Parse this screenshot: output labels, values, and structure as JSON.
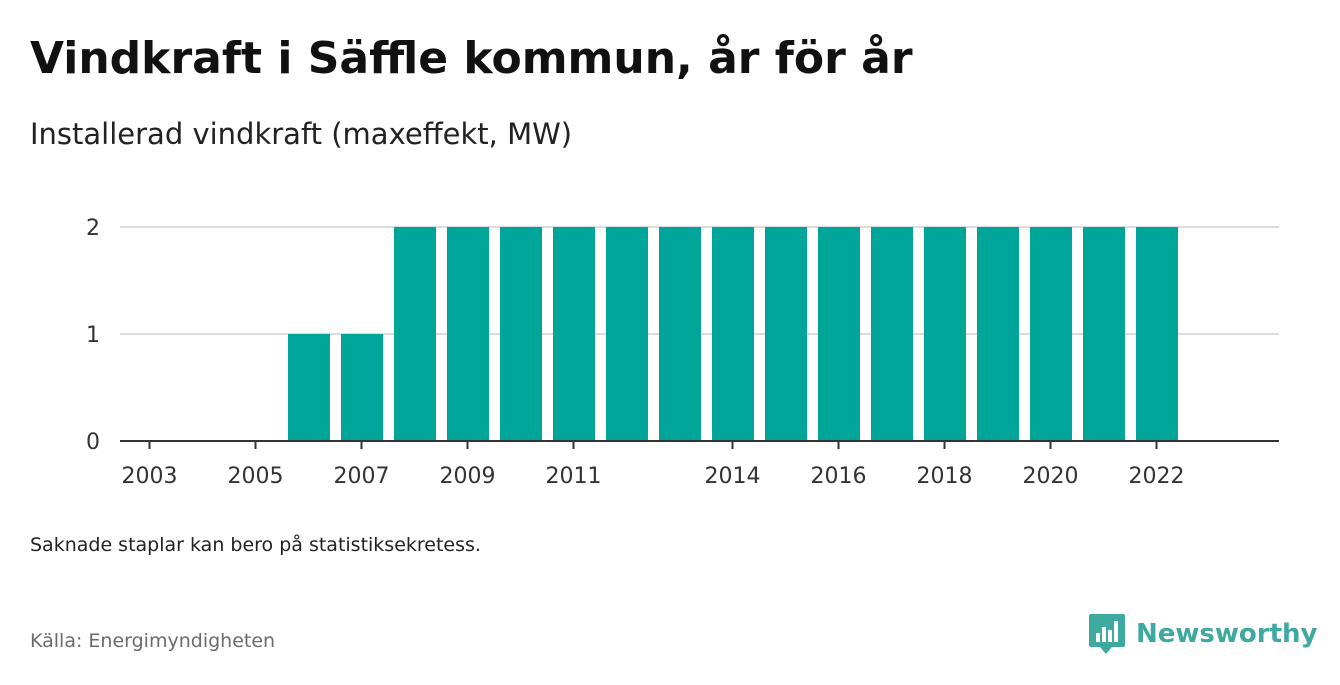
{
  "header": {
    "title": "Vindkraft i Säffle kommun, år för år",
    "subtitle": "Installerad vindkraft (maxeffekt, MW)"
  },
  "footer": {
    "note": "Saknade staplar kan bero på statistiksekretess.",
    "source": "Källa: Energimyndigheten",
    "brand": "Newsworthy"
  },
  "colors": {
    "bar": "#00a59a",
    "gridline": "#dcdcdc",
    "axis": "#333333",
    "brand": "#3ea99f"
  },
  "chart_data": {
    "type": "bar",
    "title": "Vindkraft i Säffle kommun, år för år",
    "subtitle": "Installerad vindkraft (maxeffekt, MW)",
    "xlabel": "",
    "ylabel": "",
    "categories": [
      "2003",
      "2004",
      "2005",
      "2006",
      "2007",
      "2008",
      "2009",
      "2010",
      "2011",
      "2012",
      "2013",
      "2014",
      "2015",
      "2016",
      "2017",
      "2018",
      "2019",
      "2020",
      "2021",
      "2022"
    ],
    "values": [
      0,
      0,
      0,
      1,
      1,
      2,
      2,
      2,
      2,
      2,
      2,
      2,
      2,
      2,
      2,
      2,
      2,
      2,
      2,
      2
    ],
    "ylim": [
      0,
      2
    ],
    "yticks": [
      0,
      1,
      2
    ],
    "xtick_labels": [
      "2003",
      "2005",
      "2007",
      "2009",
      "2011",
      "2014",
      "2016",
      "2018",
      "2020",
      "2022"
    ],
    "grid": true,
    "legend": "none"
  }
}
